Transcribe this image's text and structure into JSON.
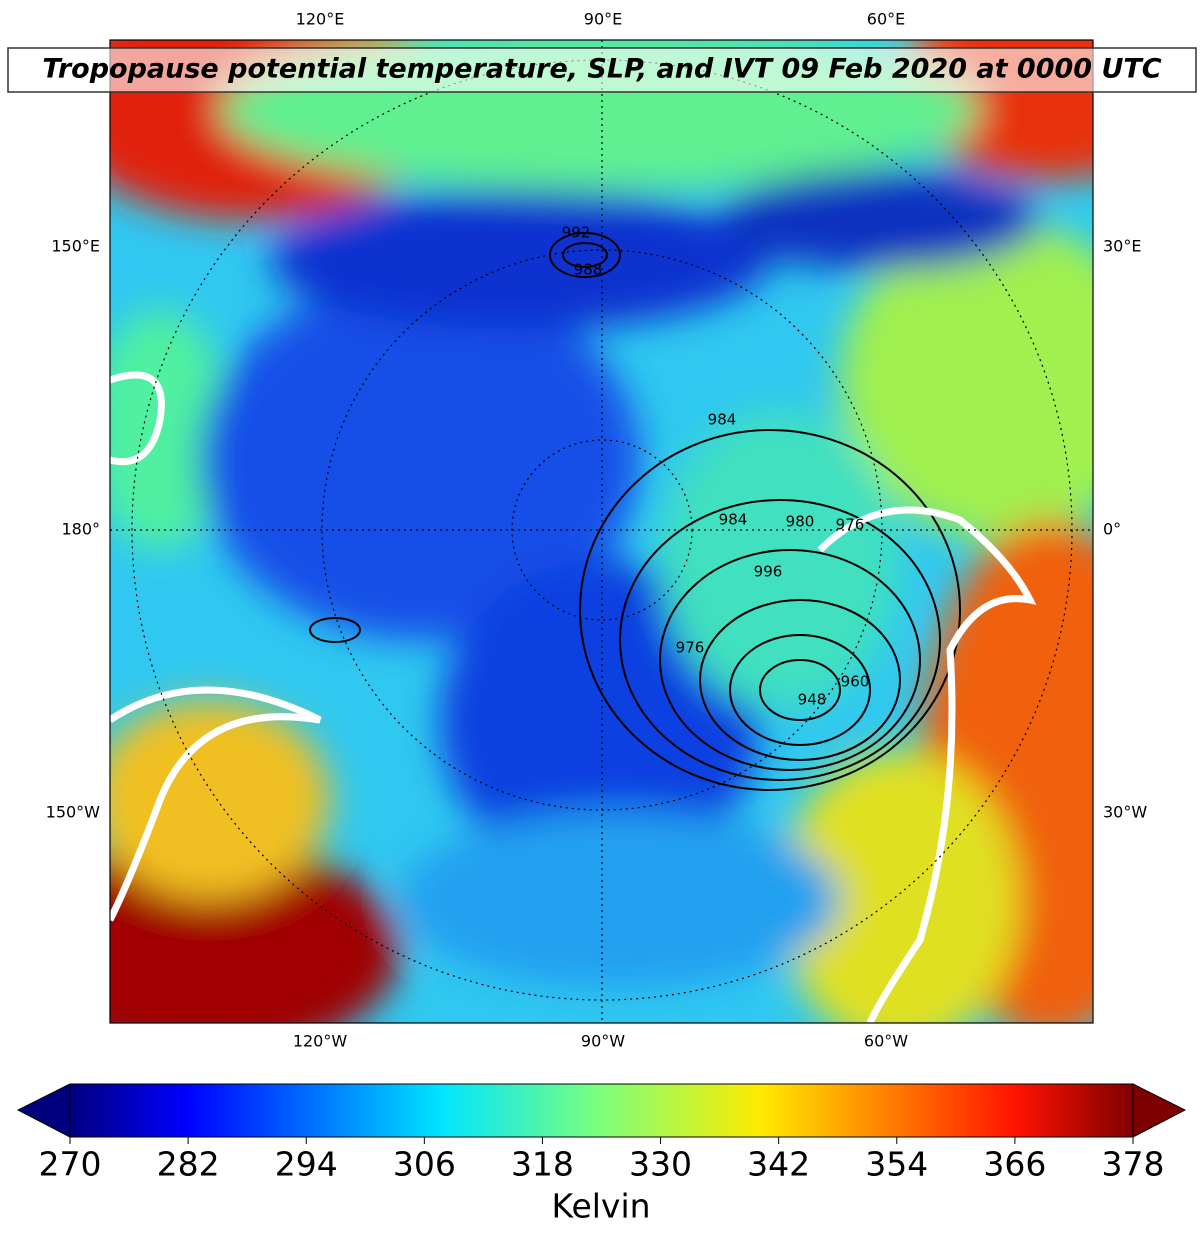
{
  "title": "Tropopause potential temperature, SLP, and IVT 09 Feb 2020 at 0000 UTC",
  "map": {
    "top_labels": [
      "120°E",
      "90°E",
      "60°E"
    ],
    "bottom_labels": [
      "120°W",
      "90°W",
      "60°W"
    ],
    "left_labels": [
      "150°E",
      "180°",
      "150°W"
    ],
    "right_labels": [
      "30°E",
      "0°",
      "30°W"
    ],
    "contour_labels": [
      "992",
      "988",
      "984",
      "980",
      "976",
      "984",
      "996",
      "948",
      "960",
      "976"
    ]
  },
  "colorbar": {
    "label": "Kelvin",
    "range": [
      270,
      378
    ],
    "ticks": [
      270,
      282,
      294,
      306,
      318,
      330,
      342,
      354,
      366,
      378
    ]
  }
}
